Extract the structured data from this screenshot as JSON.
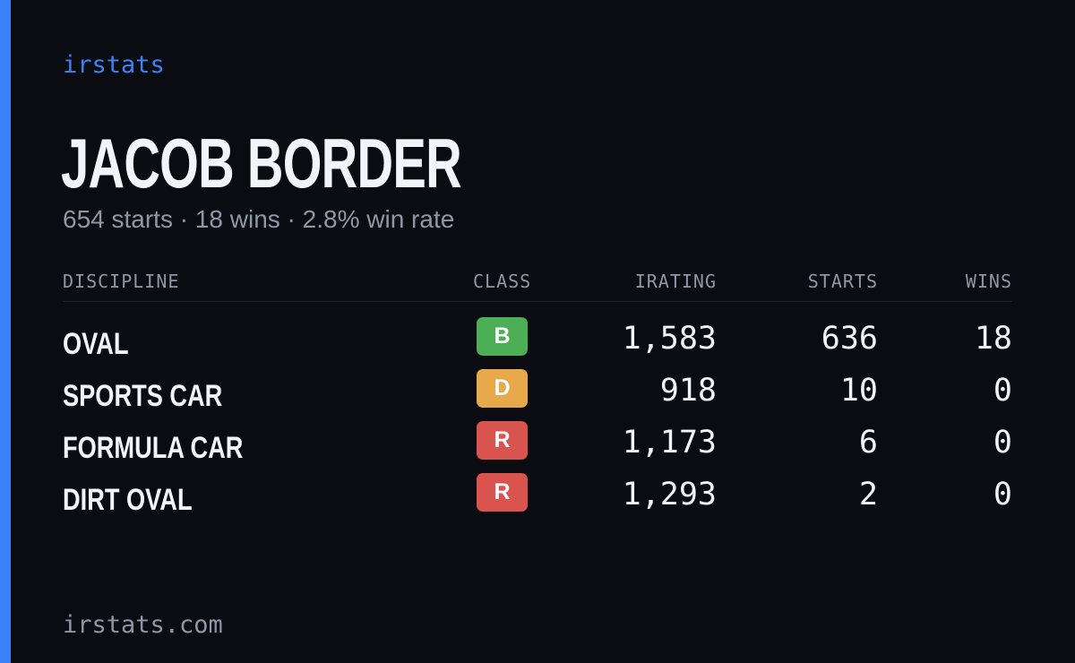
{
  "brand": "irstats",
  "driver": {
    "name": "JACOB BORDER",
    "summary": "654 starts · 18 wins · 2.8% win rate"
  },
  "table": {
    "headers": {
      "discipline": "DISCIPLINE",
      "class": "CLASS",
      "irating": "IRATING",
      "starts": "STARTS",
      "wins": "WINS"
    },
    "rows": [
      {
        "discipline": "OVAL",
        "class": "B",
        "class_color": "#4cae55",
        "irating": "1,583",
        "starts": "636",
        "wins": "18"
      },
      {
        "discipline": "SPORTS CAR",
        "class": "D",
        "class_color": "#e8a94a",
        "irating": "918",
        "starts": "10",
        "wins": "0"
      },
      {
        "discipline": "FORMULA CAR",
        "class": "R",
        "class_color": "#d9534f",
        "irating": "1,173",
        "starts": "6",
        "wins": "0"
      },
      {
        "discipline": "DIRT OVAL",
        "class": "R",
        "class_color": "#d9534f",
        "irating": "1,293",
        "starts": "2",
        "wins": "0"
      }
    ]
  },
  "footer": "irstats.com",
  "colors": {
    "accent": "#3b82f6",
    "background": "#0a0c12",
    "muted": "#8e97a7"
  }
}
